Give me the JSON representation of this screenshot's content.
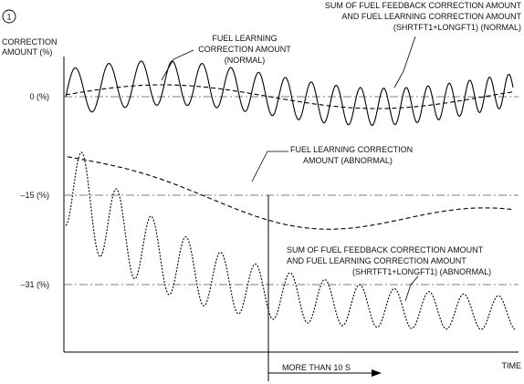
{
  "figure_number": "1",
  "y_axis_label": [
    "CORRECTION",
    "AMOUNT (%)"
  ],
  "x_axis_label": "TIME",
  "levels": [
    {
      "id": "zero",
      "label": "0 (%)",
      "value": 0
    },
    {
      "id": "minus15",
      "label": "–15 (%)",
      "value": -15
    },
    {
      "id": "minus31",
      "label": "–31 (%)",
      "value": -31
    }
  ],
  "callouts": {
    "sum_normal": [
      "SUM OF FUEL FEEDBACK CORRECTION AMOUNT",
      "AND FUEL LEARNING CORRECTION AMOUNT",
      "(SHRTFT1+LONGFT1) (NORMAL)"
    ],
    "learn_normal": [
      "FUEL LEARNING",
      "CORRECTION AMOUNT",
      "(NORMAL)"
    ],
    "learn_abnormal": [
      "FUEL LEARNING CORRECTION",
      "AMOUNT (ABNORMAL)"
    ],
    "sum_abnormal": [
      "SUM OF FUEL FEEDBACK CORRECTION AMOUNT",
      "AND FUEL LEARNING CORRECTION AMOUNT",
      "(SHRTFT1+LONGFT1) (ABNORMAL)"
    ]
  },
  "duration_label": "MORE THAN 10 S",
  "series_styles": {
    "sum_normal": "solid",
    "learn_normal": "dashed",
    "learn_abnormal": "dashed",
    "sum_abnormal": "dotted"
  }
}
